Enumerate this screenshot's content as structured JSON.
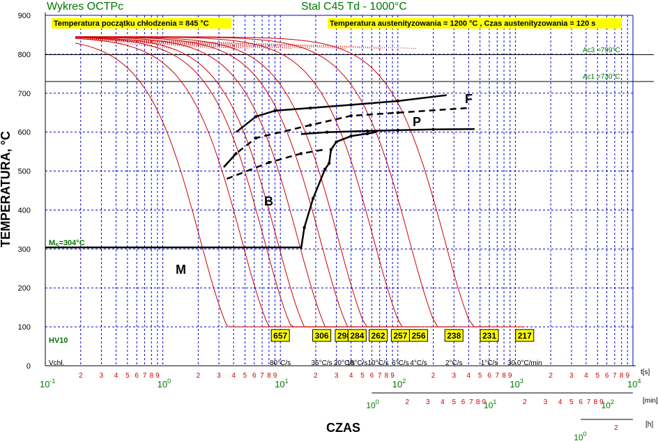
{
  "header": {
    "title_left": "Wykres OCTPc",
    "title_center": "Stal C45 Td - 1000°C",
    "note_left": "Temperatura początku chłodzenia = 845 °C",
    "note_right": "Temperatura austenityzowania = 1200 °C , Czas austenityzowania = 120 s"
  },
  "colors": {
    "curve": "#cc0000",
    "grid": "#0000cc",
    "label_green": "#007700",
    "box_fill": "#ffff00"
  },
  "chart_data": {
    "type": "line",
    "title": "Stal C45 Td - 1000°C",
    "xlabel": "CZAS",
    "ylabel": "TEMPERATURA, °C",
    "x_scale": "log",
    "xlim": [
      0.1,
      10000
    ],
    "ylim": [
      0,
      900
    ],
    "y_ticks": [
      0,
      100,
      200,
      300,
      400,
      500,
      600,
      700,
      800,
      900
    ],
    "x_unit": "t[s]",
    "x_decade_labels_s": [
      {
        "base": "10",
        "exp": "-1"
      },
      {
        "base": "10",
        "exp": "0"
      },
      {
        "base": "10",
        "exp": "1"
      },
      {
        "base": "10",
        "exp": "2"
      },
      {
        "base": "10",
        "exp": "3"
      },
      {
        "base": "10",
        "exp": "4"
      }
    ],
    "x_minor_labels": [
      "2",
      "3",
      "4",
      "5",
      "6",
      "7",
      "8",
      "9"
    ],
    "min_axis": {
      "unit": "[min]",
      "decades": [
        {
          "base": "10",
          "exp": "0"
        },
        {
          "base": "10",
          "exp": "1"
        },
        {
          "base": "10",
          "exp": "2"
        }
      ]
    },
    "h_axis": {
      "unit": "[h]",
      "decades": [
        {
          "base": "10",
          "exp": "0"
        }
      ],
      "minor": [
        "2"
      ]
    },
    "Ac3": {
      "label": "Ac3 =799°C",
      "value": 799
    },
    "Ac1": {
      "label": "Ac1 =730°C",
      "value": 730
    },
    "Ms": {
      "label": "MS=304°C",
      "value": 304
    },
    "start_temperature": 845,
    "phase_labels": [
      "F",
      "P",
      "B",
      "M"
    ],
    "hardness_label": "HV10",
    "cooling_rate_label": "Vchł.",
    "cooling_curves": [
      {
        "hv": "657",
        "rate": "80°C/s",
        "t_end": 10
      },
      {
        "hv": "306",
        "rate": "35°C/s",
        "t_end": 22.5
      },
      {
        "hv": "298",
        "rate": "20°C/s",
        "t_end": 35
      },
      {
        "hv": "284",
        "rate": "15°C/s",
        "t_end": 45
      },
      {
        "hv": "262",
        "rate": "10°C/s",
        "t_end": 68
      },
      {
        "hv": "257",
        "rate": "6°C/s",
        "t_end": 105
      },
      {
        "hv": "256",
        "rate": "4°C/s",
        "t_end": 150
      },
      {
        "hv": "238",
        "rate": "2°C/s",
        "t_end": 300
      },
      {
        "hv": "231",
        "rate": "1°C/s",
        "t_end": 600
      },
      {
        "hv": "217",
        "rate": "30,0°C/min",
        "t_end": 1200
      }
    ],
    "transformation_lines": [
      {
        "name": "ferrite start",
        "style": "solid",
        "points": [
          [
            4.2,
            600
          ],
          [
            6.2,
            640
          ],
          [
            9,
            655
          ],
          [
            18,
            662
          ],
          [
            40,
            670
          ],
          [
            100,
            680
          ],
          [
            260,
            695
          ]
        ]
      },
      {
        "name": "pearlite start",
        "style": "dashed",
        "points": [
          [
            3.3,
            510
          ],
          [
            4.2,
            545
          ],
          [
            6.2,
            585
          ],
          [
            18,
            618
          ],
          [
            40,
            642
          ],
          [
            100,
            650
          ],
          [
            400,
            662
          ]
        ]
      },
      {
        "name": "pearlite finish",
        "style": "solid",
        "points": [
          [
            15,
            595
          ],
          [
            25,
            600
          ],
          [
            55,
            603
          ],
          [
            100,
            605
          ],
          [
            200,
            607
          ],
          [
            450,
            608
          ]
        ]
      },
      {
        "name": "bainite start",
        "style": "dashed",
        "points": [
          [
            3.5,
            480
          ],
          [
            8,
            522
          ],
          [
            15,
            545
          ],
          [
            23.5,
            555
          ]
        ]
      },
      {
        "name": "bainite start upper",
        "style": "solid",
        "points": [
          [
            3.3,
            510
          ],
          [
            4.2,
            545
          ]
        ]
      },
      {
        "name": "bainite finish",
        "style": "solid",
        "points": [
          [
            15,
            300
          ],
          [
            16,
            355
          ],
          [
            19,
            430
          ],
          [
            24,
            505
          ],
          [
            26,
            520
          ],
          [
            27,
            555
          ],
          [
            30,
            575
          ],
          [
            40,
            590
          ],
          [
            55,
            596
          ],
          [
            65,
            600
          ]
        ]
      },
      {
        "name": "martensite start",
        "style": "solid",
        "points": [
          [
            0.1,
            304
          ],
          [
            15,
            304
          ]
        ]
      }
    ]
  }
}
